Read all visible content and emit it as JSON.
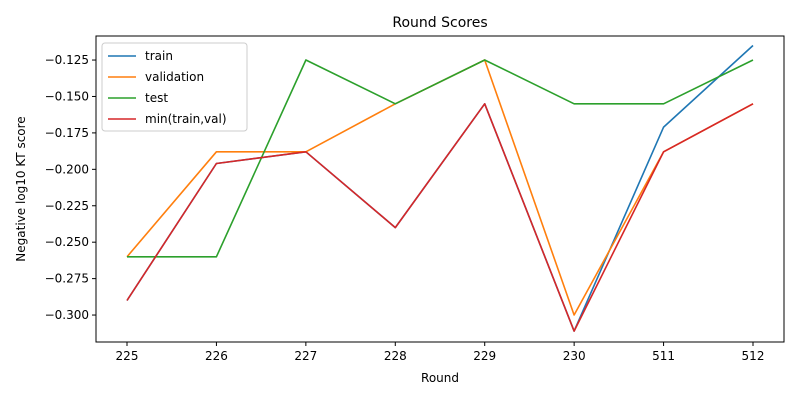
{
  "chart_data": {
    "type": "line",
    "title": "Round Scores",
    "xlabel": "Round",
    "ylabel": "Negative log10 KT score",
    "categories": [
      "225",
      "226",
      "227",
      "228",
      "229",
      "230",
      "511",
      "512"
    ],
    "ylim": [
      -0.3185,
      -0.1085
    ],
    "yticks": [
      -0.125,
      -0.15,
      -0.175,
      -0.2,
      -0.225,
      -0.25,
      -0.275,
      -0.3
    ],
    "ytick_labels": [
      "−0.125",
      "−0.150",
      "−0.175",
      "−0.200",
      "−0.225",
      "−0.250",
      "−0.275",
      "−0.300"
    ],
    "grid": false,
    "legend_position": "top-left",
    "series": [
      {
        "name": "train",
        "color": "#1f77b4",
        "values": [
          -0.29,
          -0.196,
          -0.188,
          -0.24,
          -0.155,
          -0.311,
          -0.171,
          -0.115
        ]
      },
      {
        "name": "validation",
        "color": "#ff7f0e",
        "values": [
          -0.26,
          -0.188,
          -0.188,
          -0.155,
          -0.125,
          -0.3,
          -0.188,
          -0.155
        ]
      },
      {
        "name": "test",
        "color": "#2ca02c",
        "values": [
          -0.26,
          -0.26,
          -0.125,
          -0.155,
          -0.125,
          -0.155,
          -0.155,
          -0.125
        ]
      },
      {
        "name": "min(train,val)",
        "color": "#d62728",
        "values": [
          -0.29,
          -0.196,
          -0.188,
          -0.24,
          -0.155,
          -0.311,
          -0.188,
          -0.155
        ]
      }
    ]
  }
}
